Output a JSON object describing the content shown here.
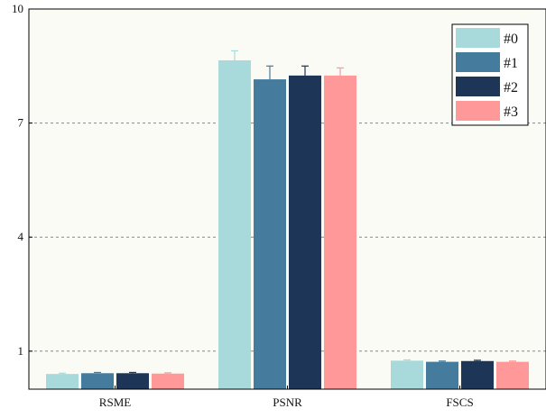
{
  "chart_data": {
    "type": "bar",
    "categories": [
      "RSME",
      "PSNR",
      "FSCS"
    ],
    "series": [
      {
        "name": "#0",
        "color": "#a8dadc",
        "values": [
          0.4,
          8.65,
          0.75
        ],
        "errors": [
          0.02,
          0.25,
          0.02
        ]
      },
      {
        "name": "#1",
        "color": "#457b9d",
        "values": [
          0.42,
          8.15,
          0.72
        ],
        "errors": [
          0.02,
          0.35,
          0.02
        ]
      },
      {
        "name": "#2",
        "color": "#1d3557",
        "values": [
          0.42,
          8.25,
          0.74
        ],
        "errors": [
          0.02,
          0.25,
          0.02
        ]
      },
      {
        "name": "#3",
        "color": "#ff9999",
        "values": [
          0.41,
          8.25,
          0.72
        ],
        "errors": [
          0.02,
          0.2,
          0.02
        ]
      }
    ],
    "ylim": [
      0,
      10
    ],
    "yticks": [
      1,
      4,
      7,
      10
    ],
    "grid": "dashed horizontal",
    "legend_position": "top-right",
    "background": "#fbfbf5"
  }
}
